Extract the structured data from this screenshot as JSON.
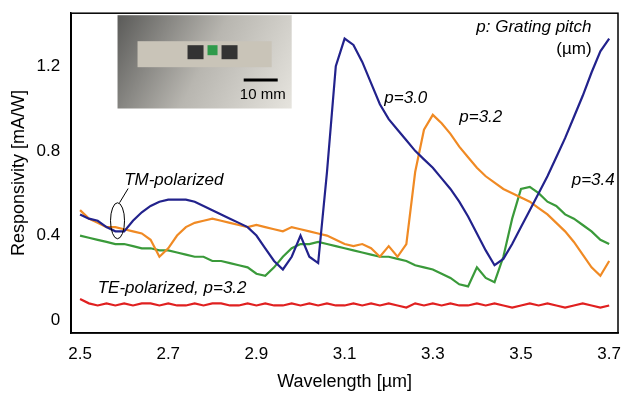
{
  "chart_data": {
    "type": "line",
    "x_label": "Wavelength [µm]",
    "y_label": "Responsivity [mA/W]",
    "xlim": [
      2.48,
      3.72
    ],
    "xticks": [
      2.5,
      2.7,
      2.9,
      3.1,
      3.3,
      3.5,
      3.7
    ],
    "ylim": [
      -0.06,
      1.45
    ],
    "yticks": [
      0,
      0.4,
      0.8,
      1.2
    ],
    "grid": false,
    "annotations": [
      "p: Grating pitch\n(µm)",
      "TM-polarized",
      "10 mm"
    ],
    "x": [
      2.5,
      2.52,
      2.54,
      2.56,
      2.58,
      2.6,
      2.62,
      2.64,
      2.66,
      2.68,
      2.7,
      2.72,
      2.74,
      2.76,
      2.78,
      2.8,
      2.82,
      2.84,
      2.86,
      2.88,
      2.9,
      2.92,
      2.94,
      2.96,
      2.98,
      3.0,
      3.02,
      3.04,
      3.06,
      3.08,
      3.1,
      3.12,
      3.14,
      3.16,
      3.18,
      3.2,
      3.22,
      3.24,
      3.26,
      3.28,
      3.3,
      3.32,
      3.34,
      3.36,
      3.38,
      3.4,
      3.42,
      3.44,
      3.46,
      3.48,
      3.5,
      3.52,
      3.54,
      3.56,
      3.58,
      3.6,
      3.62,
      3.64,
      3.66,
      3.68,
      3.7
    ],
    "series": [
      {
        "name": "p=3.0",
        "color": "#22228c",
        "values": [
          0.5,
          0.48,
          0.47,
          0.44,
          0.42,
          0.42,
          0.47,
          0.51,
          0.54,
          0.56,
          0.57,
          0.57,
          0.57,
          0.56,
          0.54,
          0.52,
          0.5,
          0.48,
          0.46,
          0.44,
          0.4,
          0.34,
          0.28,
          0.24,
          0.3,
          0.4,
          0.3,
          0.27,
          0.7,
          1.2,
          1.33,
          1.3,
          1.22,
          1.12,
          1.02,
          0.95,
          0.9,
          0.85,
          0.8,
          0.76,
          0.72,
          0.67,
          0.62,
          0.56,
          0.49,
          0.41,
          0.33,
          0.26,
          0.29,
          0.36,
          0.44,
          0.52,
          0.6,
          0.68,
          0.77,
          0.86,
          0.96,
          1.06,
          1.17,
          1.27,
          1.33
        ]
      },
      {
        "name": "p=3.2",
        "color": "#f08a24",
        "values": [
          0.52,
          0.48,
          0.46,
          0.44,
          0.44,
          0.43,
          0.42,
          0.41,
          0.38,
          0.3,
          0.34,
          0.4,
          0.44,
          0.46,
          0.47,
          0.48,
          0.47,
          0.46,
          0.45,
          0.44,
          0.45,
          0.44,
          0.43,
          0.42,
          0.44,
          0.43,
          0.42,
          0.41,
          0.4,
          0.38,
          0.36,
          0.35,
          0.36,
          0.34,
          0.3,
          0.35,
          0.3,
          0.36,
          0.7,
          0.9,
          0.97,
          0.93,
          0.88,
          0.82,
          0.77,
          0.72,
          0.68,
          0.65,
          0.62,
          0.6,
          0.58,
          0.56,
          0.53,
          0.5,
          0.46,
          0.42,
          0.37,
          0.31,
          0.25,
          0.21,
          0.28
        ]
      },
      {
        "name": "p=3.4",
        "color": "#3a9a3a",
        "values": [
          0.4,
          0.39,
          0.38,
          0.37,
          0.36,
          0.36,
          0.35,
          0.34,
          0.34,
          0.33,
          0.33,
          0.32,
          0.31,
          0.3,
          0.3,
          0.28,
          0.28,
          0.27,
          0.26,
          0.25,
          0.22,
          0.21,
          0.25,
          0.3,
          0.34,
          0.36,
          0.36,
          0.37,
          0.36,
          0.35,
          0.34,
          0.33,
          0.32,
          0.31,
          0.3,
          0.3,
          0.29,
          0.28,
          0.26,
          0.25,
          0.24,
          0.22,
          0.2,
          0.17,
          0.16,
          0.25,
          0.2,
          0.18,
          0.3,
          0.48,
          0.62,
          0.63,
          0.6,
          0.56,
          0.54,
          0.5,
          0.48,
          0.45,
          0.42,
          0.38,
          0.36
        ]
      },
      {
        "name": "TE-polarized, p=3.2",
        "color": "#e02020",
        "values": [
          0.1,
          0.08,
          0.07,
          0.08,
          0.07,
          0.08,
          0.07,
          0.08,
          0.08,
          0.07,
          0.08,
          0.07,
          0.07,
          0.08,
          0.07,
          0.08,
          0.08,
          0.07,
          0.07,
          0.08,
          0.07,
          0.08,
          0.07,
          0.07,
          0.08,
          0.07,
          0.08,
          0.07,
          0.08,
          0.07,
          0.07,
          0.08,
          0.07,
          0.08,
          0.07,
          0.08,
          0.07,
          0.06,
          0.08,
          0.07,
          0.08,
          0.07,
          0.08,
          0.07,
          0.07,
          0.08,
          0.07,
          0.08,
          0.07,
          0.06,
          0.07,
          0.08,
          0.07,
          0.08,
          0.07,
          0.06,
          0.07,
          0.08,
          0.07,
          0.06,
          0.07
        ]
      }
    ]
  }
}
